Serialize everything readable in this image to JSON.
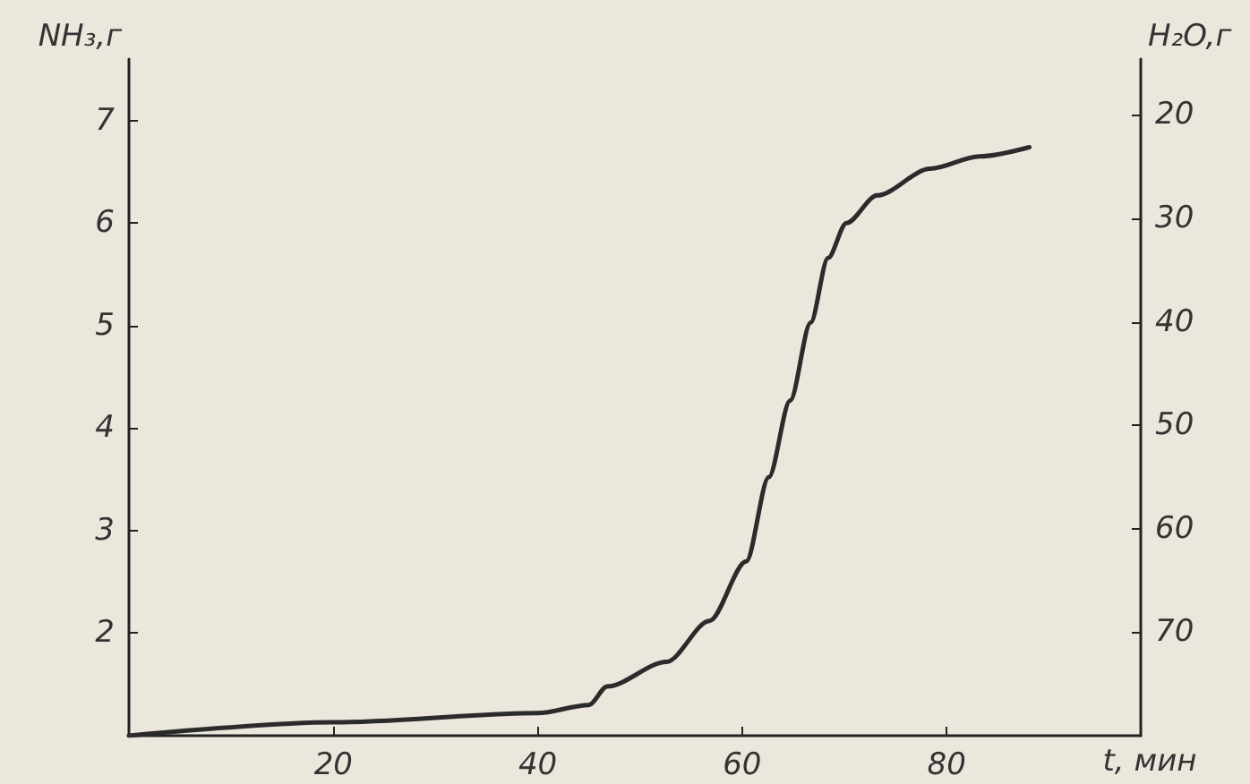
{
  "chart_data": {
    "type": "line",
    "xlabel": "t, мин",
    "ylabel": "NH₃,г",
    "y2label": "H₂O,г",
    "x": [
      0,
      20,
      40,
      45,
      46.8,
      52.6,
      56.8,
      60.4,
      62.6,
      64.7,
      66.7,
      68.4,
      70.2,
      73.2,
      78.4,
      83.2,
      88.1
    ],
    "series": [
      {
        "color": "#2b2b2b",
        "values": [
          1.0,
          1.13,
          1.22,
          1.3,
          1.48,
          1.72,
          2.12,
          2.7,
          3.52,
          4.27,
          5.03,
          5.66,
          6.0,
          6.27,
          6.53,
          6.65,
          6.74
        ]
      }
    ],
    "xlim": [
      0,
      99
    ],
    "xticks": [
      20,
      40,
      60,
      80
    ],
    "ylim": [
      1,
      7.6
    ],
    "yticks": [
      2,
      3,
      4,
      5,
      6,
      7
    ],
    "y2lim": [
      80,
      14.6
    ],
    "y2ticks": [
      20,
      30,
      40,
      50,
      60,
      70
    ],
    "marker": "none",
    "line_style": "solid"
  }
}
